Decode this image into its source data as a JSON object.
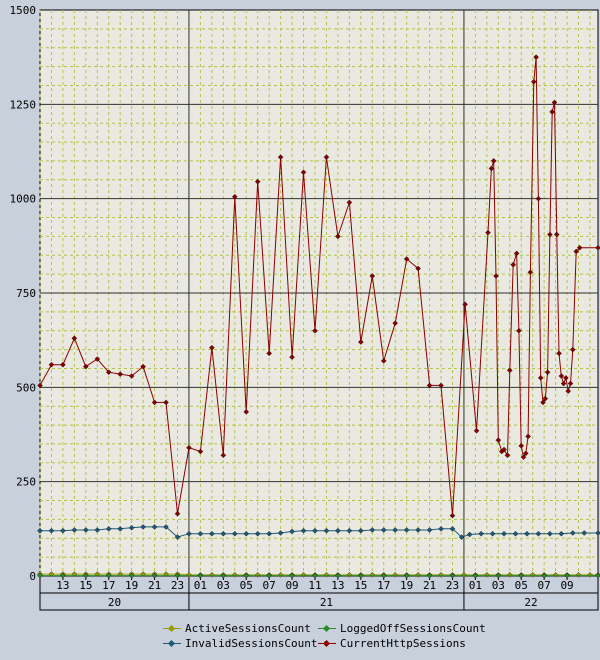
{
  "chart_data": {
    "type": "line",
    "y_ticks": [
      "0",
      "250",
      "500",
      "750",
      "1000",
      "1250",
      "1500"
    ],
    "ylim": [
      0,
      1500
    ],
    "grid": true,
    "x_hour_labels": [
      {
        "label": "13",
        "t": 13
      },
      {
        "label": "15",
        "t": 15
      },
      {
        "label": "17",
        "t": 17
      },
      {
        "label": "19",
        "t": 19
      },
      {
        "label": "21",
        "t": 21
      },
      {
        "label": "23",
        "t": 23
      },
      {
        "label": "01",
        "t": 25
      },
      {
        "label": "03",
        "t": 27
      },
      {
        "label": "05",
        "t": 29
      },
      {
        "label": "07",
        "t": 31
      },
      {
        "label": "09",
        "t": 33
      },
      {
        "label": "11",
        "t": 35
      },
      {
        "label": "13",
        "t": 37
      },
      {
        "label": "15",
        "t": 39
      },
      {
        "label": "17",
        "t": 41
      },
      {
        "label": "19",
        "t": 43
      },
      {
        "label": "21",
        "t": 45
      },
      {
        "label": "23",
        "t": 47
      },
      {
        "label": "01",
        "t": 49
      },
      {
        "label": "03",
        "t": 51
      },
      {
        "label": "05",
        "t": 53
      },
      {
        "label": "07",
        "t": 55
      },
      {
        "label": "09",
        "t": 57
      }
    ],
    "x_day_labels": [
      {
        "label": "20",
        "start": 11.0,
        "end": 24
      },
      {
        "label": "21",
        "start": 24,
        "end": 48
      },
      {
        "label": "22",
        "start": 48,
        "end": 59.7
      }
    ],
    "xlim": [
      11.0,
      59.7
    ],
    "series": [
      {
        "name": "ActiveSessionsCount",
        "color": "#9a9a00",
        "values": [
          [
            11.0,
            5
          ],
          [
            12.0,
            5
          ],
          [
            13.0,
            5
          ],
          [
            14.0,
            5
          ],
          [
            15.0,
            5
          ],
          [
            16.0,
            5
          ],
          [
            17.0,
            5
          ],
          [
            18.0,
            5
          ],
          [
            19.0,
            5
          ],
          [
            20.0,
            5
          ],
          [
            21.0,
            5
          ],
          [
            22.0,
            5
          ],
          [
            23.0,
            5
          ],
          [
            24.0,
            3
          ],
          [
            25.0,
            3
          ],
          [
            26.0,
            3
          ],
          [
            27.0,
            3
          ],
          [
            28.0,
            3
          ],
          [
            29.0,
            3
          ],
          [
            30.0,
            3
          ],
          [
            31.0,
            3
          ],
          [
            32.0,
            3
          ],
          [
            33.0,
            3
          ],
          [
            34.0,
            3
          ],
          [
            35.0,
            3
          ],
          [
            36.0,
            3
          ],
          [
            37.0,
            3
          ],
          [
            38.0,
            3
          ],
          [
            39.0,
            3
          ],
          [
            40.0,
            3
          ],
          [
            41.0,
            3
          ],
          [
            42.0,
            3
          ],
          [
            43.0,
            3
          ],
          [
            44.0,
            3
          ],
          [
            45.0,
            3
          ],
          [
            46.0,
            3
          ],
          [
            47.0,
            3
          ],
          [
            48.0,
            3
          ],
          [
            49.0,
            3
          ],
          [
            50.0,
            3
          ],
          [
            51.0,
            3
          ],
          [
            52.0,
            3
          ],
          [
            53.0,
            3
          ],
          [
            54.0,
            3
          ],
          [
            55.0,
            3
          ],
          [
            56.0,
            3
          ],
          [
            57.0,
            3
          ],
          [
            58.0,
            3
          ],
          [
            59.0,
            3
          ],
          [
            59.7,
            3
          ]
        ]
      },
      {
        "name": "LoggedOffSessionsCount",
        "color": "#2a8a2a",
        "values": [
          [
            11.0,
            1
          ],
          [
            13.0,
            1
          ],
          [
            15.0,
            1
          ],
          [
            17.0,
            1
          ],
          [
            19.0,
            1
          ],
          [
            21.0,
            1
          ],
          [
            23.0,
            1
          ],
          [
            25.0,
            1
          ],
          [
            27.0,
            1
          ],
          [
            29.0,
            1
          ],
          [
            31.0,
            1
          ],
          [
            33.0,
            1
          ],
          [
            35.0,
            1
          ],
          [
            37.0,
            1
          ],
          [
            39.0,
            1
          ],
          [
            41.0,
            1
          ],
          [
            43.0,
            1
          ],
          [
            45.0,
            1
          ],
          [
            47.0,
            1
          ],
          [
            49.0,
            1
          ],
          [
            51.0,
            1
          ],
          [
            53.0,
            1
          ],
          [
            55.0,
            1
          ],
          [
            57.0,
            1
          ],
          [
            59.7,
            1
          ]
        ]
      },
      {
        "name": "InvalidSessionsCount",
        "color": "#1e5a78",
        "values": [
          [
            11.0,
            120
          ],
          [
            12.0,
            120
          ],
          [
            13.0,
            120
          ],
          [
            14.0,
            122
          ],
          [
            15.0,
            122
          ],
          [
            16.0,
            122
          ],
          [
            17.0,
            125
          ],
          [
            18.0,
            125
          ],
          [
            19.0,
            128
          ],
          [
            20.0,
            130
          ],
          [
            21.0,
            130
          ],
          [
            22.0,
            130
          ],
          [
            23.0,
            103
          ],
          [
            24.0,
            112
          ],
          [
            25.0,
            112
          ],
          [
            26.0,
            112
          ],
          [
            27.0,
            112
          ],
          [
            28.0,
            112
          ],
          [
            29.0,
            112
          ],
          [
            30.0,
            112
          ],
          [
            31.0,
            112
          ],
          [
            32.0,
            114
          ],
          [
            33.0,
            118
          ],
          [
            34.0,
            120
          ],
          [
            35.0,
            120
          ],
          [
            36.0,
            120
          ],
          [
            37.0,
            120
          ],
          [
            38.0,
            120
          ],
          [
            39.0,
            120
          ],
          [
            40.0,
            122
          ],
          [
            41.0,
            122
          ],
          [
            42.0,
            122
          ],
          [
            43.0,
            122
          ],
          [
            44.0,
            122
          ],
          [
            45.0,
            122
          ],
          [
            46.0,
            125
          ],
          [
            47.0,
            125
          ],
          [
            47.8,
            103
          ],
          [
            48.5,
            110
          ],
          [
            49.5,
            112
          ],
          [
            50.5,
            112
          ],
          [
            51.5,
            112
          ],
          [
            52.5,
            112
          ],
          [
            53.5,
            112
          ],
          [
            54.5,
            112
          ],
          [
            55.5,
            112
          ],
          [
            56.5,
            112
          ],
          [
            57.5,
            114
          ],
          [
            58.5,
            114
          ],
          [
            59.7,
            114
          ]
        ]
      },
      {
        "name": "CurrentHttpSessions",
        "color": "#8b0000",
        "values": [
          [
            11.0,
            505
          ],
          [
            12.0,
            560
          ],
          [
            13.0,
            560
          ],
          [
            14.0,
            630
          ],
          [
            15.0,
            555
          ],
          [
            16.0,
            575
          ],
          [
            17.0,
            540
          ],
          [
            18.0,
            535
          ],
          [
            19.0,
            530
          ],
          [
            20.0,
            555
          ],
          [
            21.0,
            460
          ],
          [
            22.0,
            460
          ],
          [
            23.0,
            165
          ],
          [
            24.0,
            340
          ],
          [
            25.0,
            330
          ],
          [
            26.0,
            605
          ],
          [
            27.0,
            320
          ],
          [
            28.0,
            1005
          ],
          [
            29.0,
            435
          ],
          [
            30.0,
            1045
          ],
          [
            31.0,
            590
          ],
          [
            32.0,
            1110
          ],
          [
            33.0,
            580
          ],
          [
            34.0,
            1070
          ],
          [
            35.0,
            650
          ],
          [
            36.0,
            1110
          ],
          [
            37.0,
            900
          ],
          [
            38.0,
            990
          ],
          [
            39.0,
            620
          ],
          [
            40.0,
            795
          ],
          [
            41.0,
            570
          ],
          [
            42.0,
            670
          ],
          [
            43.0,
            840
          ],
          [
            44.0,
            815
          ],
          [
            45.0,
            505
          ],
          [
            46.0,
            505
          ],
          [
            47.0,
            160
          ],
          [
            48.1,
            720
          ],
          [
            49.1,
            385
          ],
          [
            50.1,
            910
          ],
          [
            50.4,
            1080
          ],
          [
            50.6,
            1100
          ],
          [
            50.8,
            795
          ],
          [
            51.0,
            360
          ],
          [
            51.3,
            330
          ],
          [
            51.5,
            335
          ],
          [
            51.8,
            320
          ],
          [
            52.0,
            545
          ],
          [
            52.3,
            825
          ],
          [
            52.6,
            855
          ],
          [
            52.8,
            650
          ],
          [
            53.0,
            345
          ],
          [
            53.2,
            315
          ],
          [
            53.4,
            325
          ],
          [
            53.6,
            370
          ],
          [
            53.8,
            805
          ],
          [
            54.1,
            1310
          ],
          [
            54.3,
            1375
          ],
          [
            54.5,
            1000
          ],
          [
            54.7,
            525
          ],
          [
            54.9,
            460
          ],
          [
            55.1,
            470
          ],
          [
            55.3,
            540
          ],
          [
            55.5,
            905
          ],
          [
            55.7,
            1230
          ],
          [
            55.9,
            1255
          ],
          [
            56.1,
            905
          ],
          [
            56.3,
            590
          ],
          [
            56.5,
            530
          ],
          [
            56.7,
            510
          ],
          [
            56.9,
            525
          ],
          [
            57.1,
            490
          ],
          [
            57.3,
            510
          ],
          [
            57.5,
            600
          ],
          [
            57.8,
            860
          ],
          [
            58.1,
            870
          ],
          [
            59.7,
            870
          ]
        ]
      }
    ],
    "legend_position": "bottom"
  }
}
